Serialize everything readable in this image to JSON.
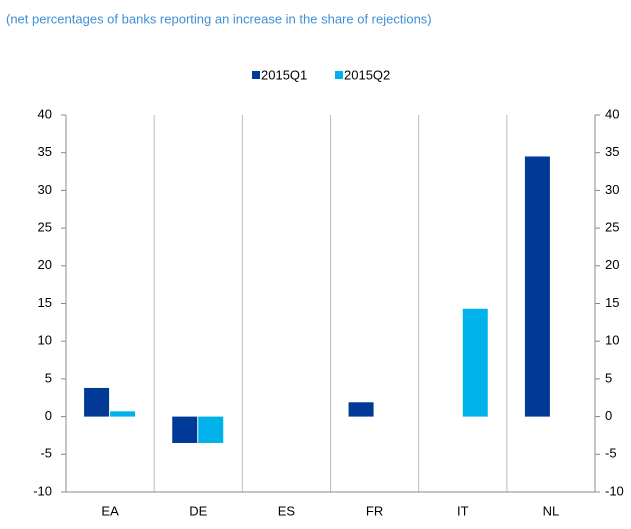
{
  "chart_data": {
    "type": "bar",
    "subtitle": "(net percentages of banks reporting an increase in the share of rejections)",
    "categories": [
      "EA",
      "DE",
      "ES",
      "FR",
      "IT",
      "NL"
    ],
    "series": [
      {
        "name": "2015Q1",
        "color": "#003a96",
        "values": [
          3.8,
          -3.5,
          0,
          1.9,
          0,
          34.5
        ]
      },
      {
        "name": "2015Q2",
        "color": "#00b1ea",
        "values": [
          0.7,
          -3.5,
          0,
          0,
          14.3,
          0
        ]
      }
    ],
    "ylim": [
      -10,
      40
    ],
    "yticks": [
      -10,
      -5,
      0,
      5,
      10,
      15,
      20,
      25,
      30,
      35,
      40
    ],
    "legend": "top"
  }
}
